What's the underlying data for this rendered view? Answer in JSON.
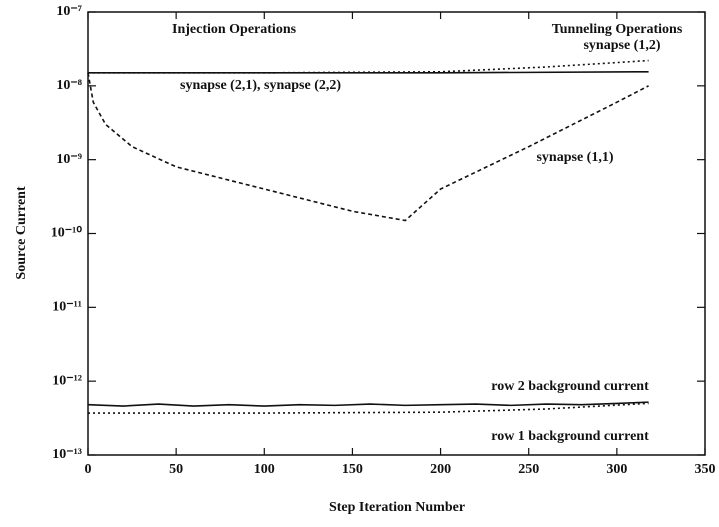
{
  "chart_data": {
    "type": "line",
    "xlabel": "Step Iteration Number",
    "ylabel": "Source Current",
    "xlim": [
      0,
      350
    ],
    "xticks": [
      0,
      50,
      100,
      150,
      200,
      250,
      300,
      350
    ],
    "ylim": [
      1e-13,
      1e-07
    ],
    "log_y": true,
    "yticks": [
      {
        "value": 1e-13,
        "label": "10⁻¹³"
      },
      {
        "value": 1e-12,
        "label": "10⁻¹²"
      },
      {
        "value": 1e-11,
        "label": "10⁻¹¹"
      },
      {
        "value": 1e-10,
        "label": "10⁻¹⁰"
      },
      {
        "value": 1e-09,
        "label": "10⁻⁹"
      },
      {
        "value": 1e-08,
        "label": "10⁻⁸"
      },
      {
        "value": 1e-07,
        "label": "10⁻⁷"
      }
    ],
    "annotations": [
      "Injection Operations",
      "Tunneling Operations"
    ],
    "series": [
      {
        "name": "synapse (2,1), synapse (2,2)",
        "color": "#111111",
        "style": "solid",
        "x": [
          0,
          100,
          200,
          318
        ],
        "values": [
          1.5e-08,
          1.5e-08,
          1.5e-08,
          1.55e-08
        ]
      },
      {
        "name": "synapse (1,2)",
        "color": "#111111",
        "style": "dotted",
        "x": [
          0,
          100,
          200,
          260,
          318
        ],
        "values": [
          1.5e-08,
          1.5e-08,
          1.55e-08,
          1.8e-08,
          2.2e-08
        ]
      },
      {
        "name": "synapse (1,1)",
        "color": "#111111",
        "style": "dashed",
        "x": [
          0,
          3,
          10,
          25,
          50,
          100,
          150,
          180,
          200,
          250,
          300,
          318
        ],
        "values": [
          1.5e-08,
          6e-09,
          3e-09,
          1.5e-09,
          8e-10,
          4e-10,
          2e-10,
          1.5e-10,
          4e-10,
          1.5e-09,
          6e-09,
          1e-08
        ]
      },
      {
        "name": "row 2 background current",
        "color": "#111111",
        "style": "solid",
        "x": [
          0,
          20,
          40,
          60,
          80,
          100,
          120,
          140,
          160,
          180,
          200,
          220,
          240,
          260,
          280,
          300,
          318
        ],
        "values": [
          4.8e-13,
          4.6e-13,
          4.9e-13,
          4.6e-13,
          4.8e-13,
          4.6e-13,
          4.8e-13,
          4.7e-13,
          4.9e-13,
          4.7e-13,
          4.8e-13,
          4.9e-13,
          4.7e-13,
          4.9e-13,
          4.8e-13,
          5e-13,
          5.2e-13
        ]
      },
      {
        "name": "row 1 background current",
        "color": "#111111",
        "style": "dotted",
        "x": [
          0,
          100,
          200,
          260,
          318
        ],
        "values": [
          3.7e-13,
          3.7e-13,
          3.8e-13,
          4.2e-13,
          5e-13
        ]
      }
    ]
  }
}
